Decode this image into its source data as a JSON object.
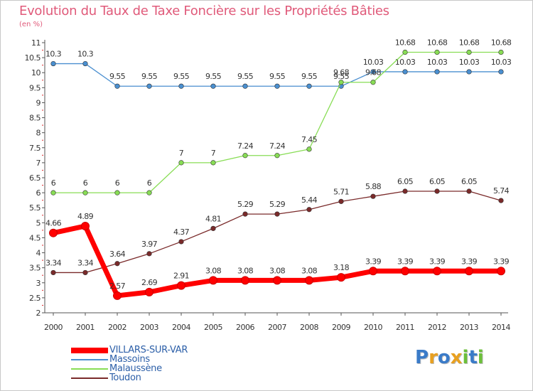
{
  "chart_data": {
    "type": "line",
    "title": "Evolution du Taux de Taxe Foncière sur les Propriétés Bâties",
    "ylabel": "(en %)",
    "xlabel": "",
    "x": [
      "2000",
      "2001",
      "2002",
      "2003",
      "2004",
      "2005",
      "2006",
      "2007",
      "2008",
      "2009",
      "2010",
      "2011",
      "2012",
      "2013",
      "2014"
    ],
    "ylim": [
      2,
      11
    ],
    "yticks": [
      "2",
      "2.5",
      "3",
      "3.5",
      "4",
      "4.5",
      "5",
      "5.5",
      "6",
      "6.5",
      "7",
      "7.5",
      "8",
      "8.5",
      "9",
      "9.5",
      "10",
      "10.5",
      "11"
    ],
    "grid": false,
    "legend_position": "bottom-left",
    "series": [
      {
        "name": "Massoins",
        "color": "#4a8fd0",
        "values": [
          10.3,
          10.3,
          9.55,
          9.55,
          9.55,
          9.55,
          9.55,
          9.55,
          9.55,
          9.55,
          10.03,
          10.03,
          10.03,
          10.03,
          10.03
        ],
        "labels": [
          "10.3",
          "10.3",
          "9.55",
          "9.55",
          "9.55",
          "9.55",
          "9.55",
          "9.55",
          "9.55",
          "9.55",
          "10.03",
          "10.03",
          "10.03",
          "10.03",
          "10.03"
        ]
      },
      {
        "name": "Malaussène",
        "color": "#88dd55",
        "values": [
          6,
          6,
          6,
          6,
          7,
          7,
          7.24,
          7.24,
          7.45,
          9.68,
          9.68,
          10.68,
          10.68,
          10.68,
          10.68
        ],
        "labels": [
          "6",
          "6",
          "6",
          "6",
          "7",
          "7",
          "7.24",
          "7.24",
          "7.45",
          "9.68",
          "9.68",
          "10.68",
          "10.68",
          "10.68",
          "10.68"
        ]
      },
      {
        "name": "Toudon",
        "color": "#7a2a2a",
        "values": [
          3.34,
          3.34,
          3.64,
          3.97,
          4.37,
          4.81,
          5.29,
          5.29,
          5.44,
          5.71,
          5.88,
          6.05,
          6.05,
          6.05,
          5.74
        ],
        "labels": [
          "3.34",
          "3.34",
          "3.64",
          "3.97",
          "4.37",
          "4.81",
          "5.29",
          "5.29",
          "5.44",
          "5.71",
          "5.88",
          "6.05",
          "6.05",
          "6.05",
          "5.74"
        ]
      },
      {
        "name": "VILLARS-SUR-VAR",
        "color": "#ff0000",
        "values": [
          4.66,
          4.89,
          2.57,
          2.69,
          2.91,
          3.08,
          3.08,
          3.08,
          3.08,
          3.18,
          3.39,
          3.39,
          3.39,
          3.39,
          3.39
        ],
        "labels": [
          "4.66",
          "4.89",
          "2.57",
          "2.69",
          "2.91",
          "3.08",
          "3.08",
          "3.08",
          "3.08",
          "3.18",
          "3.39",
          "3.39",
          "3.39",
          "3.39",
          "3.39"
        ]
      }
    ]
  },
  "legend": [
    {
      "name": "VILLARS-SUR-VAR",
      "color": "#ff0000",
      "bold": true
    },
    {
      "name": "Massoins",
      "color": "#4a8fd0",
      "bold": false
    },
    {
      "name": "Malaussène",
      "color": "#88dd55",
      "bold": false
    },
    {
      "name": "Toudon",
      "color": "#7a2a2a",
      "bold": false
    }
  ],
  "logo": {
    "letters": [
      "P",
      "r",
      "o",
      "x",
      "i",
      "t",
      "i"
    ],
    "colors": [
      "#3a7bc8",
      "#e8a020",
      "#3a7bc8",
      "#e8a020",
      "#6cbf3a",
      "#3a7bc8",
      "#6cbf3a"
    ]
  }
}
